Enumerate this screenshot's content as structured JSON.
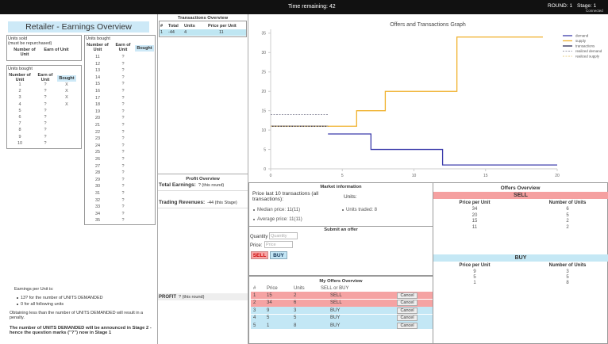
{
  "top_bar": {
    "timer": "Time remaining: 42",
    "round": "ROUND: 1",
    "stage": "Stage: 1",
    "status": "Connected"
  },
  "earnings": {
    "title": "Retailer - Earnings Overview",
    "sold": {
      "caption": "Units sold",
      "note": "(must be repurchased)",
      "headers": [
        "Number of Unit",
        "Earn of Unit"
      ]
    },
    "bought_left": {
      "caption": "Units bought",
      "headers": [
        "Number of Unit",
        "Earn of Unit",
        "Bought"
      ],
      "rows": [
        [
          "1",
          "?",
          "X"
        ],
        [
          "2",
          "?",
          "X"
        ],
        [
          "3",
          "?",
          "X"
        ],
        [
          "4",
          "?",
          "X"
        ],
        [
          "5",
          "?"
        ],
        [
          "6",
          "?"
        ],
        [
          "7",
          "?"
        ],
        [
          "8",
          "?"
        ],
        [
          "9",
          "?"
        ],
        [
          "10",
          "?"
        ]
      ]
    },
    "bought_right": {
      "caption": "Units bought",
      "headers": [
        "Number of Unit",
        "Earn of Unit",
        "Bought"
      ],
      "rows": [
        [
          "11",
          "?"
        ],
        [
          "12",
          "?"
        ],
        [
          "13",
          "?"
        ],
        [
          "14",
          "?"
        ],
        [
          "15",
          "?"
        ],
        [
          "16",
          "?"
        ],
        [
          "17",
          "?"
        ],
        [
          "18",
          "?"
        ],
        [
          "19",
          "?"
        ],
        [
          "20",
          "?"
        ],
        [
          "21",
          "?"
        ],
        [
          "22",
          "?"
        ],
        [
          "23",
          "?"
        ],
        [
          "24",
          "?"
        ],
        [
          "25",
          "?"
        ],
        [
          "26",
          "?"
        ],
        [
          "27",
          "?"
        ],
        [
          "28",
          "?"
        ],
        [
          "29",
          "?"
        ],
        [
          "30",
          "?"
        ],
        [
          "31",
          "?"
        ],
        [
          "32",
          "?"
        ],
        [
          "33",
          "?"
        ],
        [
          "34",
          "?"
        ],
        [
          "35",
          "?"
        ]
      ]
    },
    "info": {
      "heading": "Earnings per Unit is:",
      "bullets": [
        "13? for the number of UNITS DEMANDED",
        "0 for all following units"
      ],
      "penalty": "Obtaining less than the number of UNITS DEMANDED will result in a penalty.",
      "announcement": "The number of UNITS DEMANDED will be announced in Stage 2 - hence the question marks (\"?\") now in Stage 1"
    }
  },
  "transactions": {
    "title": "Transactions Overview",
    "headers": [
      "#",
      "Total",
      "Units",
      "Price per Unit"
    ],
    "rows": [
      [
        "1",
        "-44",
        "4",
        "11"
      ]
    ]
  },
  "profit": {
    "title": "Profit Overview",
    "lines": [
      {
        "label": "Total Earnings:",
        "value": "? (this round)"
      },
      {
        "label": "Trading Revenues:",
        "value": "-44 (this Stage)"
      }
    ],
    "final": {
      "label": "PROFIT",
      "value": "? (this round)"
    }
  },
  "chart_data": {
    "type": "line",
    "title": "Offers and Transactions Graph",
    "xlim": [
      0,
      20
    ],
    "ylim": [
      0,
      36
    ],
    "xticks": [
      0,
      5,
      10,
      15,
      20
    ],
    "yticks": [
      0,
      5,
      10,
      15,
      20,
      25,
      30,
      35
    ],
    "series": [
      {
        "name": "demand",
        "color": "#3b3bab",
        "x": [
          4,
          7,
          7,
          12,
          12,
          20
        ],
        "values": [
          9,
          9,
          5,
          5,
          1,
          1
        ]
      },
      {
        "name": "supply",
        "color": "#f0b12c",
        "x": [
          0,
          6,
          6,
          8,
          8,
          13,
          13,
          19
        ],
        "values": [
          11,
          11,
          15,
          15,
          20,
          20,
          34,
          34
        ]
      },
      {
        "name": "transactions",
        "color": "#2b2b55",
        "x": [
          0,
          4
        ],
        "values": [
          11,
          11
        ]
      },
      {
        "name": "realized demand",
        "color": "#9a9aa8",
        "dashed": true,
        "x": [
          0,
          4
        ],
        "values": [
          14,
          14
        ]
      },
      {
        "name": "realized supply",
        "color": "#e8cf8a",
        "dashed": true,
        "x": [
          0,
          4
        ],
        "values": [
          11,
          11
        ]
      }
    ]
  },
  "market": {
    "title": "Market information",
    "price_heading": "Price last 10 transactions (all transactions):",
    "units_heading": "Units:",
    "price_items": [
      "Median price: 11(11)",
      "Average price: 11(11)"
    ],
    "unit_items": [
      "Units traded: 8"
    ]
  },
  "submit": {
    "title": "Submit an offer",
    "quantity_label": "Quantity",
    "quantity_placeholder": "Quantity",
    "price_label": "Price:",
    "price_placeholder": "Price",
    "sell": "SELL",
    "buy": "BUY"
  },
  "my_offers": {
    "title": "My Offers Overview",
    "headers": [
      "#",
      "Price",
      "Units",
      "SELL or BUY"
    ],
    "cancel": "Cancel",
    "rows": [
      [
        "1",
        "15",
        "2",
        "SELL"
      ],
      [
        "2",
        "34",
        "6",
        "SELL"
      ],
      [
        "3",
        "9",
        "3",
        "BUY"
      ],
      [
        "4",
        "5",
        "5",
        "BUY"
      ],
      [
        "5",
        "1",
        "8",
        "BUY"
      ]
    ]
  },
  "offers": {
    "title": "Offers Overview",
    "sell": {
      "label": "SELL",
      "headers": [
        "Price per Unit",
        "Number of Units"
      ],
      "rows": [
        [
          "34",
          "6"
        ],
        [
          "20",
          "5"
        ],
        [
          "15",
          "2"
        ],
        [
          "11",
          "2"
        ]
      ]
    },
    "buy": {
      "label": "BUY",
      "headers": [
        "Price per Unit",
        "Number of Units"
      ],
      "rows": [
        [
          "9",
          "3"
        ],
        [
          "5",
          "5"
        ],
        [
          "1",
          "8"
        ]
      ]
    }
  }
}
